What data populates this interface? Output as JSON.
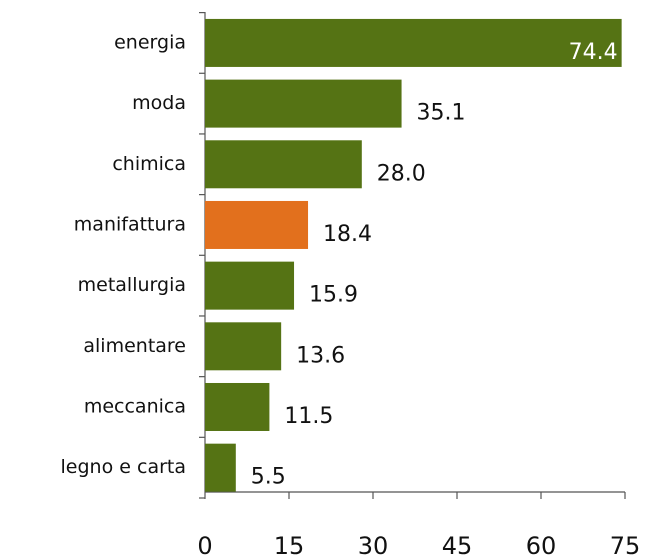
{
  "chart_data": {
    "type": "barh",
    "categories": [
      "energia",
      "moda",
      "chimica",
      "manifattura",
      "metallurgia",
      "alimentare",
      "meccanica",
      "legno e carta"
    ],
    "values": [
      74.4,
      35.1,
      28.0,
      18.4,
      15.9,
      13.6,
      11.5,
      5.5
    ],
    "value_labels": [
      "74.4",
      "35.1",
      "28.0",
      "18.4",
      "15.9",
      "13.6",
      "11.5",
      "5.5"
    ],
    "colors": [
      "#557314",
      "#557314",
      "#557314",
      "#e2701d",
      "#557314",
      "#557314",
      "#557314",
      "#557314"
    ],
    "xlim": [
      0,
      75
    ],
    "xticks": [
      0,
      15,
      30,
      45,
      60,
      75
    ]
  }
}
